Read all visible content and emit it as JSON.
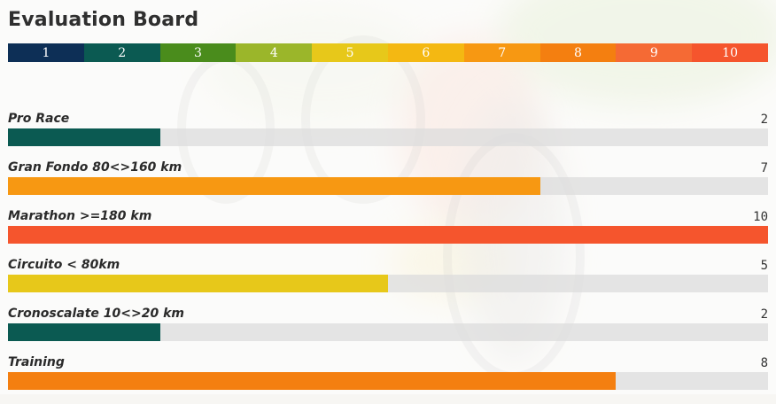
{
  "header": {
    "title": "Evaluation Board"
  },
  "scale": [
    {
      "label": "1",
      "color": "#0d2f56"
    },
    {
      "label": "2",
      "color": "#0b5a52"
    },
    {
      "label": "3",
      "color": "#4a8c1c"
    },
    {
      "label": "4",
      "color": "#9bb62a"
    },
    {
      "label": "5",
      "color": "#e7c81a"
    },
    {
      "label": "6",
      "color": "#f4b812"
    },
    {
      "label": "7",
      "color": "#f79812"
    },
    {
      "label": "8",
      "color": "#f47f10"
    },
    {
      "label": "9",
      "color": "#f56a34"
    },
    {
      "label": "10",
      "color": "#f5552d"
    }
  ],
  "max_score": 10,
  "ratings": [
    {
      "label": "Pro Race",
      "score": 2
    },
    {
      "label": "Gran Fondo 80<>160 km",
      "score": 7
    },
    {
      "label": "Marathon >=180 km",
      "score": 10
    },
    {
      "label": "Circuito < 80km",
      "score": 5
    },
    {
      "label": "Cronoscalate 10<>20 km",
      "score": 2
    },
    {
      "label": "Training",
      "score": 8
    }
  ]
}
